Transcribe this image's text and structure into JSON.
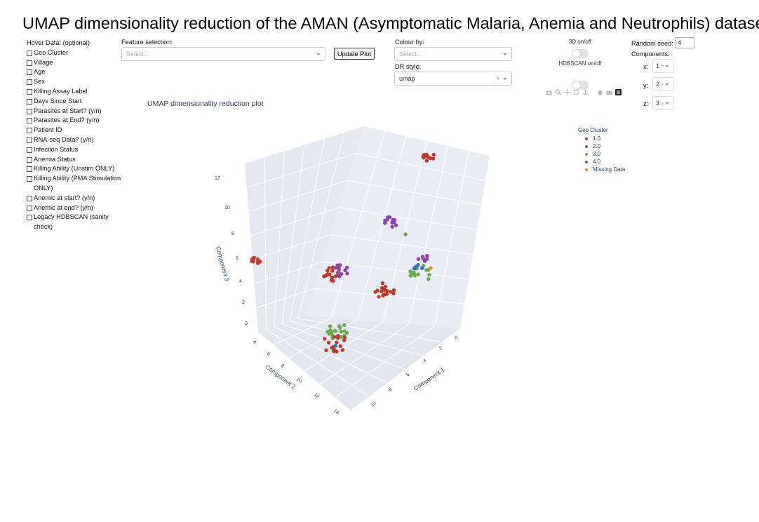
{
  "page_title": "UMAP dimensionality reduction of the AMAN (Asymptomatic Malaria, Anemia and Neutrophils) dataset",
  "hover_data": {
    "label": "Hover Data: (optional)",
    "options": [
      "Geo Cluster",
      "Village",
      "Age",
      "Sex",
      "Killing Assay Label",
      "Days Since Start",
      "Parasites at Start? (y/n)",
      "Parasites at End? (y/n)",
      "Patient ID",
      "RNA-seq Data? (y/n)",
      "Infection Status",
      "Anemia Status",
      "Killing Ability (Unstim ONLY)",
      "Killing Ability (PMA Stimulation ONLY)",
      "Anemic at start? (y/n)",
      "Anemic at end? (y/n)",
      "Legacy HDBSCAN (sanity check)"
    ]
  },
  "feature_selection": {
    "label": "Feature selection:",
    "placeholder": "Select..."
  },
  "update_button": "Update Plot",
  "colour_by": {
    "label": "Colour by:",
    "placeholder": "Select..."
  },
  "dr_style": {
    "label": "DR style:",
    "value": "umap"
  },
  "toggle_3d": {
    "label": "3D on/off"
  },
  "toggle_hdbscan": {
    "label": "HDBSCAN on/off"
  },
  "random_seed": {
    "label": "Random seed:",
    "value": "4"
  },
  "components": {
    "label": "Components:",
    "x_label": "x:",
    "x": "1",
    "y_label": "y:",
    "y": "2",
    "z_label": "z:",
    "z": "3"
  },
  "icons": [
    "camera-icon",
    "zoom-icon",
    "pan-icon",
    "orbit-icon",
    "turntable-icon",
    "home-icon",
    "reset-camera-icon",
    "plotly-logo-icon"
  ],
  "chart_data": {
    "type": "scatter3d",
    "title": "UMAP dimensionality reduction plot",
    "x_title": "Component 1",
    "y_title": "Component 2",
    "z_title": "Component 3",
    "x_ticks": [
      "0",
      "2",
      "4",
      "6",
      "8",
      "10"
    ],
    "y_ticks": [
      "4",
      "6",
      "8",
      "10",
      "12",
      "14"
    ],
    "z_ticks": [
      "0",
      "2",
      "4",
      "6",
      "8",
      "10",
      "12"
    ],
    "legend_title": "Geo Cluster",
    "series": [
      {
        "name": "1.0",
        "color": "#c0392b"
      },
      {
        "name": "2.0",
        "color": "#2c6fbb"
      },
      {
        "name": "3.0",
        "color": "#6aaa4f"
      },
      {
        "name": "4.0",
        "color": "#8e44ad"
      },
      {
        "name": "Missing Data",
        "color": "#e08a2e"
      }
    ],
    "clusters": [
      {
        "series": 0,
        "cx": 610,
        "cy": 223,
        "n": 12,
        "spread": 7
      },
      {
        "series": 0,
        "cx": 364,
        "cy": 370,
        "n": 10,
        "spread": 6
      },
      {
        "series": 0,
        "cx": 474,
        "cy": 390,
        "n": 16,
        "spread": 11
      },
      {
        "series": 3,
        "cx": 485,
        "cy": 385,
        "n": 10,
        "spread": 9
      },
      {
        "series": 3,
        "cx": 558,
        "cy": 316,
        "n": 12,
        "spread": 8
      },
      {
        "series": 2,
        "cx": 578,
        "cy": 334,
        "n": 1,
        "spread": 0
      },
      {
        "series": 0,
        "cx": 548,
        "cy": 413,
        "n": 16,
        "spread": 12
      },
      {
        "series": 2,
        "cx": 600,
        "cy": 390,
        "n": 14,
        "spread": 12
      },
      {
        "series": 1,
        "cx": 596,
        "cy": 383,
        "n": 4,
        "spread": 6
      },
      {
        "series": 3,
        "cx": 604,
        "cy": 368,
        "n": 7,
        "spread": 6
      },
      {
        "series": 4,
        "cx": 614,
        "cy": 382,
        "n": 1,
        "spread": 0
      },
      {
        "series": 2,
        "cx": 480,
        "cy": 470,
        "n": 18,
        "spread": 14
      },
      {
        "series": 0,
        "cx": 478,
        "cy": 490,
        "n": 16,
        "spread": 14
      },
      {
        "series": 1,
        "cx": 478,
        "cy": 493,
        "n": 1,
        "spread": 0
      }
    ]
  }
}
